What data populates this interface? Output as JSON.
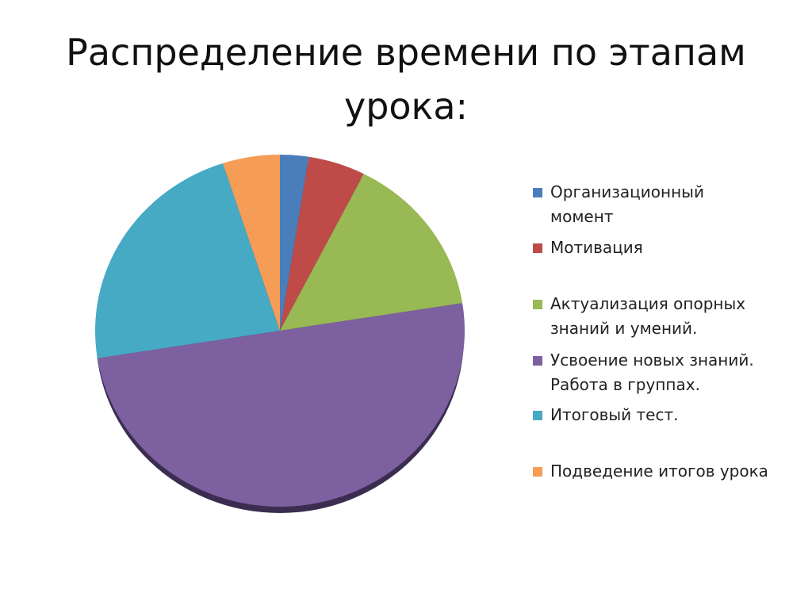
{
  "chart_data": {
    "type": "pie",
    "title": "Распределение времени по этапам урока:",
    "categories": [
      "Организационный момент",
      "Мотивация",
      "Актуализация опорных знаний и умений.",
      "Усвоение новых знаний. Работа в группах.",
      "Итоговый тест.",
      "Подведение итогов урока"
    ],
    "values": [
      1,
      2,
      6,
      20,
      9,
      2
    ],
    "colors": [
      "#4a7ebb",
      "#be4b48",
      "#98b954",
      "#7d60a0",
      "#46aac5",
      "#f59d56"
    ],
    "legend": "right"
  }
}
